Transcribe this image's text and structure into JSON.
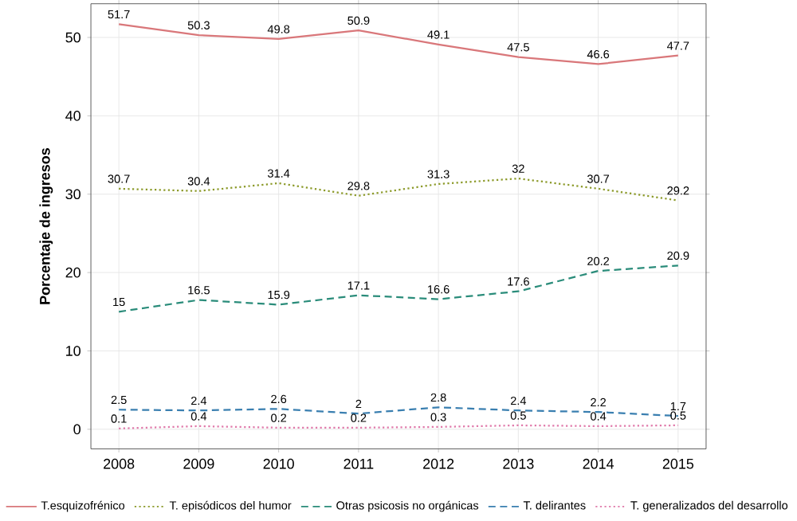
{
  "chart_data": {
    "type": "line",
    "ylabel": "Porcentaje de ingresos",
    "x": [
      2008,
      2009,
      2010,
      2011,
      2012,
      2013,
      2014,
      2015
    ],
    "xlim": [
      2007.65,
      2015.35
    ],
    "xticks": [
      2008,
      2009,
      2010,
      2011,
      2012,
      2013,
      2014,
      2015
    ],
    "ylim": [
      -2.5,
      54.3
    ],
    "yticks": [
      0,
      10,
      20,
      30,
      40,
      50
    ],
    "grid": true,
    "legend": "bottom",
    "marker": "none",
    "series": [
      {
        "name": "T.esquizofrénico",
        "color": "#d9777a",
        "line_style": "solid",
        "values": [
          51.7,
          50.3,
          49.8,
          50.9,
          49.1,
          47.5,
          46.6,
          47.7
        ],
        "value_labels": [
          "51.7",
          "50.3",
          "49.8",
          "50.9",
          "49.1",
          "47.5",
          "46.6",
          "47.7"
        ]
      },
      {
        "name": "T. episódicos del humor",
        "color": "#8c9a2a",
        "line_style": "dotted",
        "values": [
          30.7,
          30.4,
          31.4,
          29.8,
          31.3,
          32,
          30.7,
          29.2
        ],
        "value_labels": [
          "30.7",
          "30.4",
          "31.4",
          "29.8",
          "31.3",
          "32",
          "30.7",
          "29.2"
        ]
      },
      {
        "name": "Otras psicosis no orgánicas",
        "color": "#2a8c7a",
        "line_style": "dashed",
        "values": [
          15,
          16.5,
          15.9,
          17.1,
          16.6,
          17.6,
          20.2,
          20.9
        ],
        "value_labels": [
          "15",
          "16.5",
          "15.9",
          "17.1",
          "16.6",
          "17.6",
          "20.2",
          "20.9"
        ]
      },
      {
        "name": "T. delirantes",
        "color": "#3a7fb0",
        "line_style": "dashed",
        "values": [
          2.5,
          2.4,
          2.6,
          2,
          2.8,
          2.4,
          2.2,
          1.7
        ],
        "value_labels": [
          "2.5",
          "2.4",
          "2.6",
          "2",
          "2.8",
          "2.4",
          "2.2",
          "1.7"
        ]
      },
      {
        "name": "T. generalizados del desarrollo",
        "color": "#e07aaa",
        "line_style": "dotted",
        "values": [
          0.1,
          0.4,
          0.2,
          0.2,
          0.3,
          0.5,
          0.4,
          0.5
        ],
        "value_labels": [
          "0.1",
          "0.4",
          "0.2",
          "0.2",
          "0.3",
          "0.5",
          "0.4",
          "0.5"
        ]
      }
    ]
  }
}
